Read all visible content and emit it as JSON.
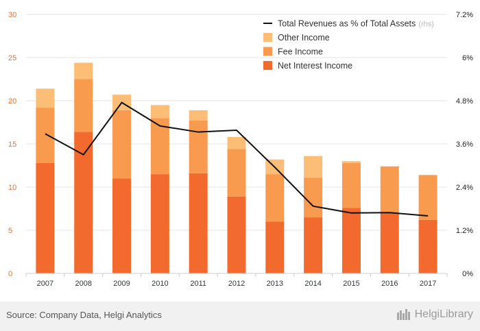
{
  "chart_data": {
    "type": "bar",
    "stacked": true,
    "categories": [
      "2007",
      "2008",
      "2009",
      "2010",
      "2011",
      "2012",
      "2013",
      "2014",
      "2015",
      "2016",
      "2017"
    ],
    "series": [
      {
        "name": "Net Interest Income",
        "color": "#f26a2d",
        "values": [
          12.8,
          16.4,
          11.0,
          11.5,
          11.6,
          8.9,
          6.0,
          6.5,
          7.6,
          7.0,
          6.2
        ]
      },
      {
        "name": "Fee Income",
        "color": "#f99b4e",
        "values": [
          6.4,
          6.1,
          7.9,
          6.5,
          6.1,
          5.5,
          5.5,
          4.6,
          5.2,
          5.4,
          5.2
        ]
      },
      {
        "name": "Other Income",
        "color": "#fcbd77",
        "values": [
          2.2,
          1.9,
          1.8,
          1.5,
          1.2,
          1.4,
          1.7,
          2.5,
          0.2,
          0.0,
          0.0
        ]
      }
    ],
    "line": {
      "name": "Total Revenues as % of Total Assets",
      "name_suffix": "(rhs)",
      "axis": "right",
      "color": "#111111",
      "values": [
        3.88,
        3.3,
        4.75,
        4.1,
        3.93,
        3.98,
        2.95,
        1.87,
        1.68,
        1.69,
        1.6
      ]
    },
    "yleft": {
      "min": 0,
      "max": 30,
      "ticks": [
        "0",
        "5",
        "10",
        "15",
        "20",
        "25",
        "30"
      ],
      "color": "#e8712f"
    },
    "yright": {
      "min": 0,
      "max": 7.2,
      "ticks": [
        "0%",
        "1.2%",
        "2.4%",
        "3.6%",
        "4.8%",
        "6%",
        "7.2%"
      ]
    },
    "grid": true,
    "legend_position": "top-right",
    "title": ""
  },
  "footer": {
    "source": "Source: Company Data, Helgi Analytics",
    "brand": "HelgiLibrary"
  }
}
